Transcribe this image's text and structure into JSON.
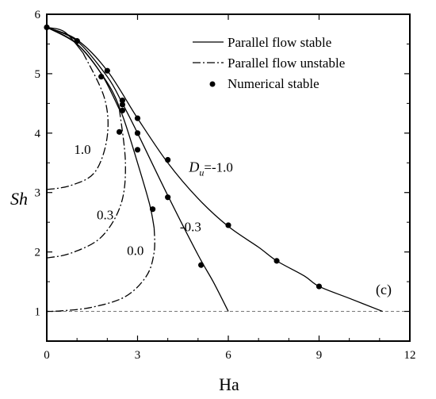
{
  "chart_data": {
    "type": "line",
    "xlabel": "Ha",
    "ylabel": "Sh",
    "xlim": [
      0,
      12
    ],
    "ylim": [
      0.5,
      6
    ],
    "xticks": [
      0,
      3,
      6,
      9,
      12
    ],
    "yticks": [
      1,
      2,
      3,
      4,
      5,
      6
    ],
    "x_tick_labels": [
      "0",
      "3",
      "6",
      "9",
      "12"
    ],
    "y_tick_labels": [
      "1",
      "2",
      "3",
      "4",
      "5",
      "6"
    ],
    "legend": {
      "placement": "top-right",
      "entries": [
        {
          "label": "Parallel flow stable",
          "style": "solid"
        },
        {
          "label": "Parallel flow unstable",
          "style": "dash-dot"
        },
        {
          "label": "Numerical stable",
          "style": "marker"
        }
      ]
    },
    "panel_label": "(c)",
    "series": [
      {
        "label": "D_u=-1.0",
        "stable": [
          [
            0,
            5.78
          ],
          [
            1,
            5.57
          ],
          [
            2,
            5.05
          ],
          [
            3,
            4.25
          ],
          [
            4,
            3.5
          ],
          [
            5,
            2.9
          ],
          [
            6,
            2.43
          ],
          [
            7,
            2.08
          ],
          [
            7.6,
            1.85
          ],
          [
            8.5,
            1.6
          ],
          [
            9,
            1.42
          ],
          [
            10,
            1.22
          ],
          [
            11.1,
            1.0
          ]
        ],
        "unstable": [],
        "points": [
          [
            0,
            5.78
          ],
          [
            1,
            5.55
          ],
          [
            2,
            5.05
          ],
          [
            3,
            4.25
          ],
          [
            4,
            3.55
          ],
          [
            6,
            2.45
          ],
          [
            7.6,
            1.85
          ],
          [
            9,
            1.42
          ]
        ]
      },
      {
        "label": "-0.3",
        "stable": [
          [
            0,
            5.78
          ],
          [
            1,
            5.55
          ],
          [
            2,
            4.95
          ],
          [
            2.5,
            4.5
          ],
          [
            3,
            4.0
          ],
          [
            4,
            2.95
          ],
          [
            5,
            1.95
          ],
          [
            5.5,
            1.5
          ],
          [
            6,
            1.0
          ]
        ],
        "unstable": [],
        "points": [
          [
            2.5,
            4.55
          ],
          [
            3,
            4.0
          ],
          [
            4,
            2.92
          ],
          [
            5.1,
            1.78
          ]
        ]
      },
      {
        "label": "0.0",
        "stable": [
          [
            0,
            5.78
          ],
          [
            1,
            5.5
          ],
          [
            2,
            4.85
          ],
          [
            2.5,
            4.3
          ],
          [
            3,
            3.5
          ],
          [
            3.4,
            2.8
          ],
          [
            3.55,
            2.4
          ]
        ],
        "unstable": [
          [
            3.55,
            2.4
          ],
          [
            3.55,
            2.0
          ],
          [
            3.3,
            1.6
          ],
          [
            2.6,
            1.25
          ],
          [
            1.5,
            1.07
          ],
          [
            0.5,
            1.01
          ],
          [
            0,
            1.0
          ]
        ],
        "points": [
          [
            2.5,
            4.38
          ],
          [
            2.4,
            4.02
          ],
          [
            3,
            3.72
          ],
          [
            3.5,
            2.72
          ]
        ]
      },
      {
        "label": "0.3",
        "stable": [
          [
            0,
            5.78
          ],
          [
            1,
            5.5
          ],
          [
            1.8,
            5.0
          ],
          [
            2.4,
            4.4
          ]
        ],
        "unstable": [
          [
            2.4,
            4.4
          ],
          [
            2.6,
            3.5
          ],
          [
            2.45,
            2.8
          ],
          [
            1.8,
            2.25
          ],
          [
            0.8,
            1.98
          ],
          [
            0,
            1.9
          ]
        ],
        "points": [
          [
            2.5,
            4.48
          ],
          [
            1.8,
            4.95
          ]
        ]
      },
      {
        "label": "1.0",
        "stable": [
          [
            0,
            5.78
          ],
          [
            0.6,
            5.7
          ],
          [
            1.2,
            5.35
          ]
        ],
        "unstable": [
          [
            1.2,
            5.35
          ],
          [
            1.9,
            4.6
          ],
          [
            2.0,
            3.95
          ],
          [
            1.6,
            3.35
          ],
          [
            0.8,
            3.12
          ],
          [
            0,
            3.05
          ]
        ],
        "points": [
          [
            1.0,
            5.55
          ]
        ]
      }
    ],
    "reference_line": {
      "y": 1.0,
      "style": "dashed"
    },
    "annotations": [
      {
        "text_main": "D",
        "text_sub": "u",
        "text_rest": "=-1.0",
        "x": 4.7,
        "y": 3.35
      },
      {
        "text": "-0.3",
        "x": 4.4,
        "y": 2.35
      },
      {
        "text": "0.0",
        "x": 2.65,
        "y": 1.95
      },
      {
        "text": "0.3",
        "x": 1.65,
        "y": 2.55
      },
      {
        "text": "1.0",
        "x": 0.9,
        "y": 3.65
      }
    ]
  }
}
